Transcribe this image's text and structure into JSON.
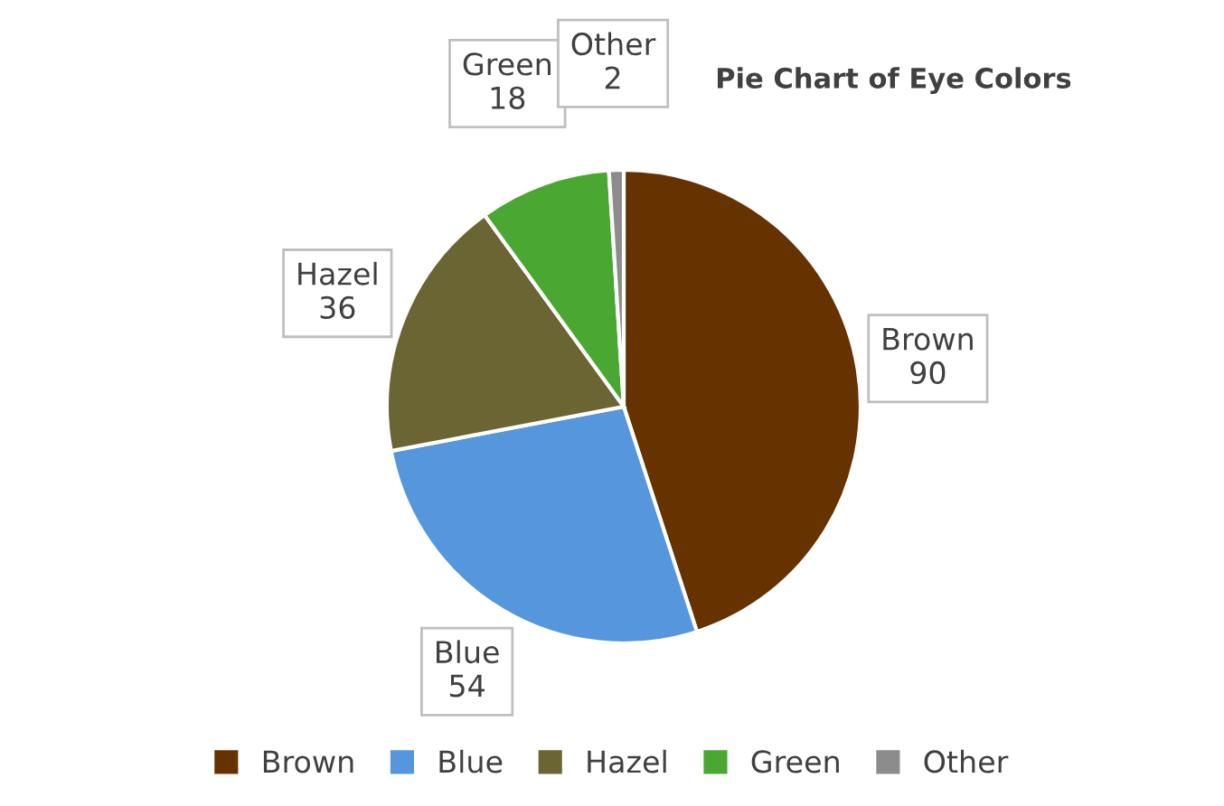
{
  "chart_data": {
    "type": "pie",
    "title": "Pie Chart of Eye Colors",
    "categories": [
      "Brown",
      "Blue",
      "Hazel",
      "Green",
      "Other"
    ],
    "values": [
      90,
      54,
      36,
      18,
      2
    ],
    "colors": [
      "#663300",
      "#5596dc",
      "#6b6433",
      "#4aa832",
      "#8c8c8c"
    ],
    "data_labels": true,
    "legend": "bottom"
  }
}
